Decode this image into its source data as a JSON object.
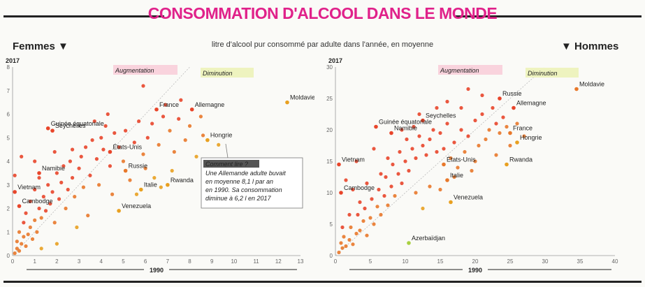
{
  "title": "CONSOMMATION D'ALCOOL DANS LE MONDE",
  "subtitle": "litre d'alcool pur consommé par adulte dans l'année, en moyenne",
  "left_header": "Femmes ▼",
  "right_header": "▼ Hommes",
  "colors": {
    "title": "#e0218a",
    "increase": "#e8452a",
    "mid": "#e8a020",
    "decrease": "#a8d040"
  },
  "chart_data": [
    {
      "type": "scatter",
      "name": "Femmes",
      "xlabel": "1990",
      "ylabel": "2017",
      "xlim": [
        0,
        13
      ],
      "ylim": [
        0,
        8
      ],
      "x_ticks": [
        "0",
        "1",
        "2",
        "3",
        "4",
        "5",
        "6",
        "7",
        "8",
        "9",
        "10",
        "11",
        "12",
        "13"
      ],
      "y_ticks": [
        "0",
        "1",
        "2",
        "3",
        "4",
        "5",
        "6",
        "7",
        "8"
      ],
      "region_labels": {
        "increase": "Augmentation",
        "decrease": "Diminution"
      },
      "annotation": {
        "heading": "Comment lire ?",
        "text": [
          "Une Allemande adulte buvait",
          "en moyenne 8,1 l par an",
          "en 1990. Sa consommation",
          "diminue à 6,2 l en 2017"
        ]
      },
      "labeled_points": [
        {
          "name": "Guinée équatoriale",
          "x": 1.6,
          "y": 5.4
        },
        {
          "name": "Seychelles",
          "x": 1.8,
          "y": 5.3
        },
        {
          "name": "Namibie",
          "x": 1.2,
          "y": 3.5
        },
        {
          "name": "Vietnam",
          "x": 0.1,
          "y": 2.7
        },
        {
          "name": "Cambodge",
          "x": 0.3,
          "y": 2.1
        },
        {
          "name": "États-Unis",
          "x": 4.4,
          "y": 4.4
        },
        {
          "name": "France",
          "x": 6.5,
          "y": 6.2
        },
        {
          "name": "Allemagne",
          "x": 8.1,
          "y": 6.2
        },
        {
          "name": "Hongrie",
          "x": 8.8,
          "y": 4.9
        },
        {
          "name": "Russie",
          "x": 5.1,
          "y": 3.6
        },
        {
          "name": "Italie",
          "x": 5.8,
          "y": 2.8
        },
        {
          "name": "Rwanda",
          "x": 7.0,
          "y": 3.0
        },
        {
          "name": "Venezuela",
          "x": 4.8,
          "y": 1.9
        },
        {
          "name": "Moldavie",
          "x": 12.4,
          "y": 6.5
        }
      ],
      "points": [
        [
          0.1,
          0.1
        ],
        [
          0.2,
          0.3
        ],
        [
          0.3,
          0.2
        ],
        [
          0.2,
          0.6
        ],
        [
          0.4,
          0.5
        ],
        [
          0.5,
          0.8
        ],
        [
          0.3,
          1.0
        ],
        [
          0.6,
          0.4
        ],
        [
          0.7,
          0.9
        ],
        [
          0.8,
          1.2
        ],
        [
          0.5,
          1.4
        ],
        [
          0.9,
          0.7
        ],
        [
          1.0,
          1.5
        ],
        [
          0.6,
          1.8
        ],
        [
          1.1,
          1.0
        ],
        [
          1.2,
          2.0
        ],
        [
          0.8,
          2.3
        ],
        [
          1.3,
          1.6
        ],
        [
          1.4,
          2.5
        ],
        [
          1.0,
          2.8
        ],
        [
          1.5,
          1.9
        ],
        [
          1.6,
          3.0
        ],
        [
          1.7,
          2.2
        ],
        [
          1.2,
          3.3
        ],
        [
          1.8,
          2.7
        ],
        [
          2.0,
          3.5
        ],
        [
          1.9,
          1.4
        ],
        [
          2.1,
          2.4
        ],
        [
          2.2,
          3.1
        ],
        [
          2.3,
          3.8
        ],
        [
          2.4,
          2.0
        ],
        [
          2.5,
          2.8
        ],
        [
          2.6,
          4.0
        ],
        [
          2.7,
          3.3
        ],
        [
          2.8,
          2.5
        ],
        [
          3.0,
          3.7
        ],
        [
          3.1,
          4.2
        ],
        [
          3.2,
          2.9
        ],
        [
          3.3,
          4.6
        ],
        [
          3.5,
          3.4
        ],
        [
          3.6,
          4.9
        ],
        [
          3.8,
          4.1
        ],
        [
          3.9,
          3.0
        ],
        [
          4.0,
          5.0
        ],
        [
          4.1,
          4.5
        ],
        [
          4.2,
          5.5
        ],
        [
          4.4,
          3.8
        ],
        [
          4.6,
          5.2
        ],
        [
          4.8,
          4.6
        ],
        [
          5.0,
          4.0
        ],
        [
          5.1,
          5.3
        ],
        [
          5.3,
          3.2
        ],
        [
          5.5,
          4.8
        ],
        [
          5.7,
          5.7
        ],
        [
          5.9,
          4.3
        ],
        [
          6.1,
          5.0
        ],
        [
          6.3,
          5.6
        ],
        [
          6.6,
          4.7
        ],
        [
          6.8,
          5.9
        ],
        [
          7.1,
          5.3
        ],
        [
          7.3,
          4.4
        ],
        [
          7.5,
          5.8
        ],
        [
          7.8,
          4.9
        ],
        [
          8.0,
          5.5
        ],
        [
          8.3,
          4.2
        ],
        [
          8.6,
          5.1
        ],
        [
          6.0,
          3.7
        ],
        [
          6.4,
          3.3
        ],
        [
          5.6,
          2.6
        ],
        [
          4.5,
          2.6
        ],
        [
          3.4,
          1.7
        ],
        [
          2.9,
          1.2
        ],
        [
          2.0,
          0.5
        ],
        [
          1.3,
          0.3
        ],
        [
          5.9,
          7.2
        ],
        [
          0.4,
          4.2
        ],
        [
          0.1,
          3.4
        ],
        [
          1.0,
          4.0
        ],
        [
          2.7,
          4.5
        ],
        [
          3.7,
          5.7
        ],
        [
          4.3,
          6.0
        ],
        [
          1.9,
          4.4
        ],
        [
          6.9,
          6.4
        ],
        [
          7.6,
          6.6
        ],
        [
          8.5,
          5.9
        ],
        [
          9.3,
          4.7
        ],
        [
          7.2,
          3.6
        ],
        [
          6.7,
          2.9
        ]
      ]
    },
    {
      "type": "scatter",
      "name": "Hommes",
      "xlabel": "1990",
      "ylabel": "2017",
      "xlim": [
        0,
        40
      ],
      "ylim": [
        0,
        30
      ],
      "x_ticks": [
        "0",
        "5",
        "10",
        "15",
        "20",
        "25",
        "30",
        "35",
        "40"
      ],
      "y_ticks": [
        "0",
        "5",
        "10",
        "15",
        "20",
        "25",
        "30"
      ],
      "region_labels": {
        "increase": "Augmentation",
        "decrease": "Diminution"
      },
      "labeled_points": [
        {
          "name": "Seychelles",
          "x": 12.5,
          "y": 21.5
        },
        {
          "name": "Guinée équatoriale",
          "x": 5.8,
          "y": 20.5
        },
        {
          "name": "Namibie",
          "x": 8.0,
          "y": 19.5
        },
        {
          "name": "Vietnam",
          "x": 0.5,
          "y": 14.5
        },
        {
          "name": "Cambodge",
          "x": 0.8,
          "y": 10.0
        },
        {
          "name": "États-Unis",
          "x": 15.5,
          "y": 14.5
        },
        {
          "name": "Italie",
          "x": 16.0,
          "y": 12.0
        },
        {
          "name": "Russie",
          "x": 23.5,
          "y": 25.0
        },
        {
          "name": "Allemagne",
          "x": 25.5,
          "y": 23.5
        },
        {
          "name": "France",
          "x": 25.0,
          "y": 19.5
        },
        {
          "name": "Hongrie",
          "x": 26.0,
          "y": 18.0
        },
        {
          "name": "Rwanda",
          "x": 24.5,
          "y": 14.5
        },
        {
          "name": "Venezuela",
          "x": 16.5,
          "y": 8.5
        },
        {
          "name": "Moldavie",
          "x": 34.5,
          "y": 26.5
        },
        {
          "name": "Azerbaïdjan",
          "x": 10.5,
          "y": 2.0
        }
      ],
      "points": [
        [
          0.5,
          0.5
        ],
        [
          1.0,
          1.2
        ],
        [
          0.8,
          2.0
        ],
        [
          1.5,
          1.5
        ],
        [
          2.0,
          2.5
        ],
        [
          1.2,
          3.0
        ],
        [
          2.5,
          1.8
        ],
        [
          3.0,
          3.5
        ],
        [
          2.2,
          4.5
        ],
        [
          3.5,
          4.0
        ],
        [
          4.0,
          5.5
        ],
        [
          3.2,
          6.5
        ],
        [
          4.5,
          3.2
        ],
        [
          5.0,
          6.0
        ],
        [
          4.2,
          7.5
        ],
        [
          5.5,
          5.0
        ],
        [
          6.0,
          7.8
        ],
        [
          5.2,
          9.0
        ],
        [
          6.5,
          6.5
        ],
        [
          7.0,
          9.5
        ],
        [
          6.2,
          10.5
        ],
        [
          7.5,
          8.0
        ],
        [
          8.0,
          11.0
        ],
        [
          7.2,
          12.5
        ],
        [
          8.5,
          9.5
        ],
        [
          9.0,
          13.0
        ],
        [
          8.2,
          14.5
        ],
        [
          9.5,
          11.5
        ],
        [
          10.0,
          15.0
        ],
        [
          9.2,
          16.5
        ],
        [
          10.5,
          13.5
        ],
        [
          11.0,
          17.0
        ],
        [
          10.2,
          18.5
        ],
        [
          11.5,
          15.5
        ],
        [
          12.0,
          19.0
        ],
        [
          11.2,
          20.5
        ],
        [
          12.5,
          17.5
        ],
        [
          13.0,
          16.0
        ],
        [
          13.5,
          18.5
        ],
        [
          14.0,
          20.0
        ],
        [
          14.5,
          16.5
        ],
        [
          15.0,
          19.5
        ],
        [
          15.5,
          17.0
        ],
        [
          16.0,
          21.0
        ],
        [
          16.5,
          15.5
        ],
        [
          17.0,
          18.0
        ],
        [
          17.5,
          14.0
        ],
        [
          18.0,
          20.0
        ],
        [
          18.5,
          16.5
        ],
        [
          19.0,
          19.0
        ],
        [
          19.5,
          13.5
        ],
        [
          20.0,
          21.5
        ],
        [
          20.5,
          17.5
        ],
        [
          21.0,
          22.5
        ],
        [
          21.5,
          18.5
        ],
        [
          22.0,
          20.0
        ],
        [
          22.5,
          23.5
        ],
        [
          23.0,
          21.0
        ],
        [
          23.5,
          19.5
        ],
        [
          24.0,
          22.0
        ],
        [
          24.5,
          20.5
        ],
        [
          25.0,
          17.5
        ],
        [
          26.0,
          21.0
        ],
        [
          27.0,
          19.0
        ],
        [
          19.0,
          26.5
        ],
        [
          18.0,
          23.5
        ],
        [
          3.5,
          8.5
        ],
        [
          2.5,
          10.5
        ],
        [
          1.5,
          12.0
        ],
        [
          4.5,
          11.5
        ],
        [
          6.5,
          13.0
        ],
        [
          7.5,
          15.5
        ],
        [
          5.5,
          17.0
        ],
        [
          3.0,
          15.0
        ],
        [
          9.5,
          20.0
        ],
        [
          12.0,
          22.5
        ],
        [
          14.5,
          23.5
        ],
        [
          16.0,
          24.5
        ],
        [
          21.0,
          25.5
        ],
        [
          13.5,
          11.0
        ],
        [
          11.5,
          10.0
        ],
        [
          12.5,
          7.5
        ],
        [
          15.0,
          10.5
        ],
        [
          17.0,
          12.5
        ],
        [
          20.0,
          15.0
        ],
        [
          23.0,
          16.0
        ],
        [
          2.0,
          6.5
        ],
        [
          1.0,
          4.5
        ]
      ]
    }
  ]
}
